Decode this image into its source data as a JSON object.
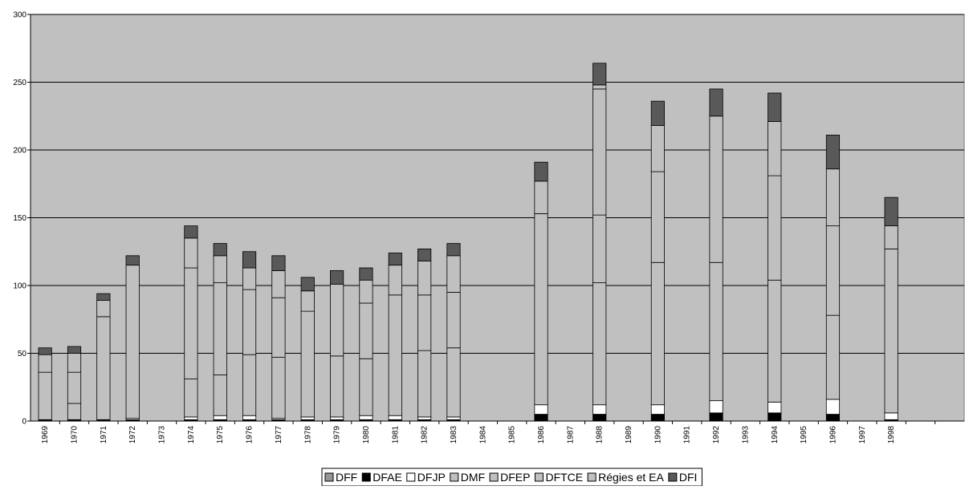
{
  "chart_data": {
    "type": "bar",
    "stacked": true,
    "title": "",
    "xlabel": "",
    "ylabel": "",
    "ylim": [
      0,
      300
    ],
    "y_ticks": [
      0,
      50,
      100,
      150,
      200,
      250,
      300
    ],
    "grid": true,
    "legend_position": "bottom",
    "plot_background": "#c0c0c0",
    "categories": [
      "1969",
      "1970",
      "1971",
      "1972",
      "1973",
      "1974",
      "1975",
      "1976",
      "1977",
      "1978",
      "1979",
      "1980",
      "1981",
      "1982",
      "1983",
      "1984",
      "1985",
      "1986",
      "1987",
      "1988",
      "1989",
      "1990",
      "1991",
      "1992",
      "1993",
      "1994",
      "1995",
      "1996",
      "1997",
      "1998"
    ],
    "series": [
      {
        "name": "DFF",
        "color": "#969696",
        "values": [
          0,
          0,
          0,
          0,
          0,
          0,
          0,
          0,
          0,
          0,
          0,
          0,
          0,
          0,
          0,
          0,
          0,
          0,
          0,
          0,
          0,
          0,
          0,
          0,
          0,
          0,
          0,
          0,
          0,
          0
        ]
      },
      {
        "name": "DFAE",
        "color": "#000000",
        "values": [
          1,
          1,
          1,
          1,
          0,
          1,
          1,
          1,
          1,
          1,
          1,
          1,
          1,
          1,
          1,
          0,
          0,
          5,
          0,
          5,
          0,
          5,
          0,
          6,
          0,
          6,
          0,
          5,
          0,
          1
        ]
      },
      {
        "name": "DFJP",
        "color": "#ffffff",
        "values": [
          0,
          0,
          0,
          1,
          0,
          2,
          3,
          3,
          1,
          2,
          2,
          3,
          3,
          2,
          2,
          0,
          0,
          7,
          0,
          7,
          0,
          7,
          0,
          9,
          0,
          8,
          0,
          11,
          0,
          5
        ]
      },
      {
        "name": "DMF",
        "color": "#c0c0c0",
        "values": [
          35,
          12,
          76,
          113,
          0,
          28,
          30,
          45,
          45,
          78,
          45,
          42,
          89,
          49,
          51,
          0,
          0,
          141,
          0,
          90,
          0,
          105,
          0,
          102,
          0,
          90,
          0,
          62,
          0,
          121
        ]
      },
      {
        "name": "DFEP",
        "color": "#c0c0c0",
        "values": [
          0,
          23,
          0,
          0,
          0,
          82,
          68,
          48,
          44,
          15,
          53,
          41,
          0,
          41,
          41,
          0,
          0,
          0,
          0,
          50,
          0,
          67,
          0,
          108,
          0,
          77,
          0,
          66,
          0,
          0
        ]
      },
      {
        "name": "DFTCE",
        "color": "#c0c0c0",
        "values": [
          13,
          14,
          12,
          0,
          0,
          22,
          20,
          16,
          20,
          0,
          0,
          17,
          22,
          25,
          27,
          0,
          0,
          24,
          0,
          93,
          0,
          34,
          0,
          0,
          0,
          40,
          0,
          42,
          0,
          17
        ]
      },
      {
        "name": "Régies et EA",
        "color": "#c0c0c0",
        "values": [
          0,
          0,
          0,
          0,
          0,
          0,
          0,
          0,
          0,
          0,
          0,
          0,
          0,
          0,
          0,
          0,
          0,
          0,
          0,
          3,
          0,
          0,
          0,
          0,
          0,
          0,
          0,
          0,
          0,
          0
        ]
      },
      {
        "name": "DFI",
        "color": "#595959",
        "values": [
          5,
          5,
          5,
          7,
          0,
          9,
          9,
          12,
          11,
          10,
          10,
          9,
          9,
          9,
          9,
          0,
          0,
          14,
          0,
          16,
          0,
          18,
          0,
          20,
          0,
          21,
          0,
          25,
          0,
          21
        ]
      }
    ]
  }
}
